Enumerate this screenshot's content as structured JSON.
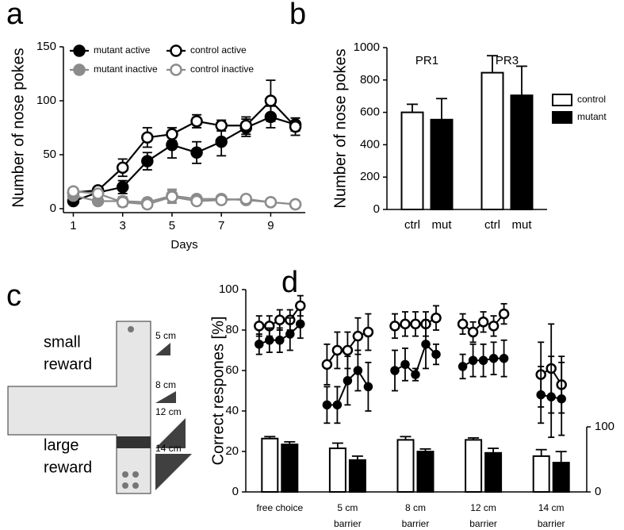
{
  "panel_labels": [
    "a",
    "b",
    "c",
    "d"
  ],
  "chart_data": [
    {
      "type": "line",
      "xlabel": "Days",
      "ylabel": "Number of nose pokes",
      "x": [
        1,
        2,
        3,
        4,
        5,
        6,
        7,
        8,
        9,
        10
      ],
      "xlim": [
        0.6,
        10.4
      ],
      "xticks": [
        1,
        3,
        5,
        7,
        9
      ],
      "ylim": [
        0,
        150
      ],
      "yticks": [
        0,
        50,
        100,
        150
      ],
      "legend": "top",
      "series": [
        {
          "name": "mutant active",
          "color": "#000000",
          "marker": "filled",
          "values": [
            7,
            15,
            20,
            44,
            59,
            52,
            62,
            75,
            85,
            78
          ],
          "errors": [
            3,
            4,
            6,
            8,
            12,
            10,
            13,
            8,
            10,
            6
          ]
        },
        {
          "name": "control active",
          "color": "#000000",
          "marker": "open",
          "values": [
            15,
            17,
            38,
            66,
            69,
            81,
            77,
            77,
            100,
            76
          ],
          "errors": [
            4,
            3,
            8,
            9,
            6,
            6,
            5,
            8,
            19,
            8
          ]
        },
        {
          "name": "mutant inactive",
          "color": "#8c8c8c",
          "marker": "filled",
          "values": [
            12,
            7,
            7,
            6,
            12,
            9,
            9,
            8,
            6,
            4
          ],
          "errors": [
            3,
            3,
            4,
            3,
            6,
            3,
            3,
            3,
            3,
            2
          ]
        },
        {
          "name": "control inactive",
          "color": "#8c8c8c",
          "marker": "open",
          "values": [
            16,
            14,
            6,
            4,
            11,
            7,
            8,
            9,
            6,
            4
          ],
          "errors": [
            3,
            3,
            4,
            3,
            6,
            3,
            3,
            3,
            3,
            2
          ]
        }
      ]
    },
    {
      "type": "bar",
      "ylabel": "Number of nose pokes",
      "categories": [
        "PR1",
        "PR3"
      ],
      "bar_labels": [
        "ctrl",
        "mut"
      ],
      "ylim": [
        0,
        1000
      ],
      "yticks": [
        0,
        200,
        400,
        600,
        800,
        1000
      ],
      "legend": "right",
      "series": [
        {
          "name": "control",
          "color": "#ffffff",
          "values": [
            600,
            845
          ],
          "errors": [
            50,
            105
          ]
        },
        {
          "name": "mutant",
          "color": "#000000",
          "values": [
            555,
            705
          ],
          "errors": [
            130,
            180
          ]
        }
      ]
    },
    {
      "type": "session-groups",
      "ylabel": "Correct respones [%]",
      "categories": [
        [
          "free choice"
        ],
        [
          "5 cm",
          "barrier"
        ],
        [
          "8 cm",
          "barrier"
        ],
        [
          "12 cm",
          "barrier"
        ],
        [
          "14 cm",
          "barrier"
        ]
      ],
      "ylim": [
        0,
        100
      ],
      "yticks": [
        0,
        20,
        40,
        60,
        80,
        100
      ],
      "y2lim": [
        0,
        100
      ],
      "y2ticks": [
        0,
        100
      ],
      "series": [
        {
          "color": "#000000",
          "marker": "open",
          "values": [
            [
              82,
              82,
              85,
              85,
              92
            ],
            [
              63,
              70,
              70,
              77,
              79
            ],
            [
              82,
              83,
              83,
              83,
              86
            ],
            [
              83,
              79,
              84,
              82,
              88
            ],
            [
              58,
              61,
              53
            ]
          ],
          "errors": [
            [
              5,
              5,
              5,
              5,
              5
            ],
            [
              10,
              9,
              9,
              9,
              9
            ],
            [
              6,
              6,
              6,
              6,
              6
            ],
            [
              5,
              5,
              5,
              5,
              5
            ],
            [
              16,
              22,
              14
            ]
          ]
        },
        {
          "color": "#000000",
          "marker": "filled",
          "values": [
            [
              73,
              75,
              75,
              78,
              83
            ],
            [
              43,
              43,
              55,
              60,
              52
            ],
            [
              60,
              63,
              58,
              73,
              68
            ],
            [
              62,
              65,
              65,
              66,
              66
            ],
            [
              48,
              47,
              46
            ]
          ],
          "errors": [
            [
              5,
              6,
              6,
              8,
              7
            ],
            [
              9,
              9,
              12,
              10,
              12
            ],
            [
              10,
              8,
              3,
              12,
              5
            ],
            [
              6,
              8,
              8,
              8,
              9
            ],
            [
              14,
              20,
              18
            ]
          ]
        }
      ],
      "bar_series": [
        {
          "color": "#ffffff",
          "axis": "y2",
          "values": [
            82,
            67,
            80,
            80,
            55
          ],
          "errors": [
            3,
            8,
            5,
            3,
            10
          ]
        },
        {
          "color": "#000000",
          "axis": "y2",
          "values": [
            73,
            49,
            62,
            60,
            45
          ],
          "errors": [
            4,
            6,
            4,
            7,
            17
          ]
        }
      ]
    }
  ],
  "diagram": {
    "zones": [
      [
        "small",
        "reward"
      ],
      [
        "large",
        "reward"
      ]
    ],
    "barriers": [
      "5 cm",
      "8 cm",
      "12 cm",
      "14 cm"
    ]
  }
}
